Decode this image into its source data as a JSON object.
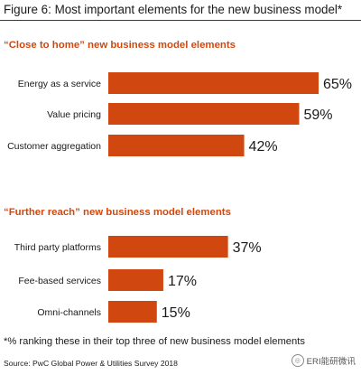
{
  "title": "Figure 6: Most important elements for the new business model*",
  "colors": {
    "bar": "#d0480f",
    "heading": "#d0480f",
    "text": "#1a1a1a"
  },
  "chart_data": [
    {
      "type": "bar",
      "orientation": "horizontal",
      "title": "“Close to home” new business model elements",
      "categories": [
        "Energy as a service",
        "Value pricing",
        "Customer aggregation"
      ],
      "values": [
        65,
        59,
        42
      ],
      "value_labels": [
        "65%",
        "59%",
        "42%"
      ],
      "unit": "%",
      "xlim": [
        0,
        65
      ],
      "grid": false,
      "legend": "none"
    },
    {
      "type": "bar",
      "orientation": "horizontal",
      "title": "“Further reach” new business model elements",
      "categories": [
        "Third party platforms",
        "Fee-based services",
        "Omni-channels"
      ],
      "values": [
        37,
        17,
        15
      ],
      "value_labels": [
        "37%",
        "17%",
        "15%"
      ],
      "unit": "%",
      "xlim": [
        0,
        65
      ],
      "grid": false,
      "legend": "none"
    }
  ],
  "footnote": "*% ranking these in their top three of new business model elements",
  "source": "Source: PwC Global Power & Utilities Survey 2018",
  "watermark": {
    "icon": "wechat-logo-icon",
    "text": "ERI能研微讯"
  }
}
